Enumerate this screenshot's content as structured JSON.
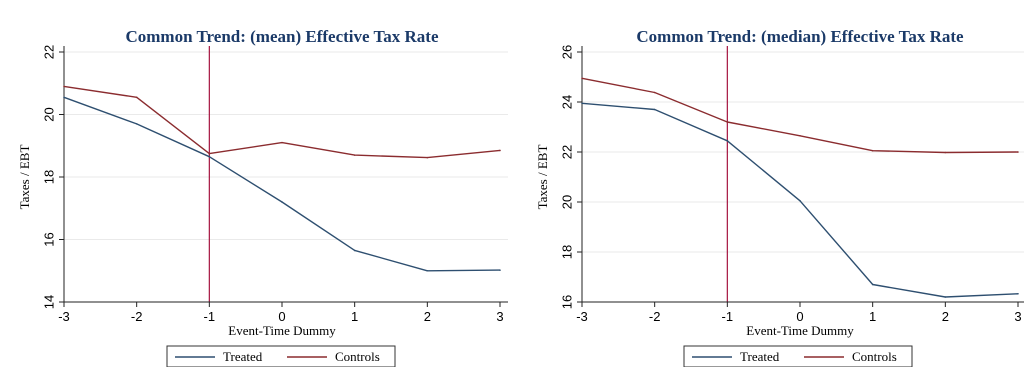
{
  "chart_data": [
    {
      "type": "line",
      "title": "Common Trend: (mean) Effective Tax Rate",
      "xlabel": "Event-Time Dummy",
      "ylabel": "Taxes / EBT",
      "x": [
        -3,
        -2,
        -1,
        0,
        1,
        2,
        3
      ],
      "xticks": [
        "-3",
        "-2",
        "-1",
        "0",
        "1",
        "2",
        "3"
      ],
      "yticks": [
        "14",
        "16",
        "18",
        "20",
        "22"
      ],
      "yrange": [
        14,
        22
      ],
      "reference_line_x": -1,
      "grid": "horizontal",
      "legend_position": "bottom",
      "series": [
        {
          "name": "Treated",
          "color": "#2e4f70",
          "values": [
            20.55,
            19.7,
            18.65,
            17.2,
            15.65,
            15.0,
            15.02
          ]
        },
        {
          "name": "Controls",
          "color": "#8b2c2f",
          "values": [
            20.9,
            20.55,
            18.75,
            19.1,
            18.7,
            18.62,
            18.85
          ]
        }
      ]
    },
    {
      "type": "line",
      "title": "Common Trend: (median) Effective Tax Rate",
      "xlabel": "Event-Time Dummy",
      "ylabel": "Taxes / EBT",
      "x": [
        -3,
        -2,
        -1,
        0,
        1,
        2,
        3
      ],
      "xticks": [
        "-3",
        "-2",
        "-1",
        "0",
        "1",
        "2",
        "3"
      ],
      "yticks": [
        "16",
        "18",
        "20",
        "22",
        "24",
        "26"
      ],
      "yrange": [
        16,
        26
      ],
      "reference_line_x": -1,
      "grid": "horizontal",
      "legend_position": "bottom",
      "series": [
        {
          "name": "Treated",
          "color": "#2e4f70",
          "values": [
            23.95,
            23.7,
            22.45,
            20.05,
            16.7,
            16.2,
            16.33
          ]
        },
        {
          "name": "Controls",
          "color": "#8b2c2f",
          "values": [
            24.95,
            24.38,
            23.2,
            22.65,
            22.05,
            21.98,
            22.0
          ]
        }
      ]
    }
  ],
  "colors": {
    "grid": "#eaeaea",
    "axis": "#222222",
    "title": "#1b3a68",
    "reference_line": "#a5123e"
  }
}
